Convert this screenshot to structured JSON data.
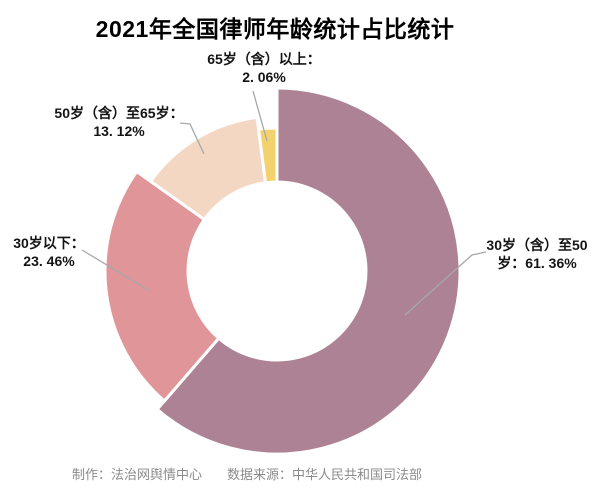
{
  "chart_data": {
    "type": "pie",
    "variant": "doughnut-rose",
    "title": "2021年全国律师年龄统计占比统计",
    "unit": "%",
    "legend": "none",
    "start_angle": "12-oclock",
    "direction": "clockwise",
    "donut_hole": true,
    "slices": [
      {
        "name": "30岁（含）至50岁",
        "value": 61.36,
        "color": "#ad8294",
        "label_line1": "30岁（含）至50",
        "label_line2": "岁：61. 36%"
      },
      {
        "name": "30岁以下",
        "value": 23.46,
        "color": "#e09598",
        "label_line1": "30岁以下：",
        "label_line2": "23. 46%"
      },
      {
        "name": "50岁（含）至65岁",
        "value": 13.12,
        "color": "#f3d7c2",
        "label_line1": "50岁（含）至65岁：",
        "label_line2": "13. 12%"
      },
      {
        "name": "65岁（含）以上",
        "value": 2.06,
        "color": "#f3d26e",
        "label_line1": "65岁（含）以上：",
        "label_line2": "2. 06%"
      }
    ]
  },
  "footer": {
    "producer": "制作：法治网舆情中心",
    "source": "数据来源：中华人民共和国司法部"
  }
}
